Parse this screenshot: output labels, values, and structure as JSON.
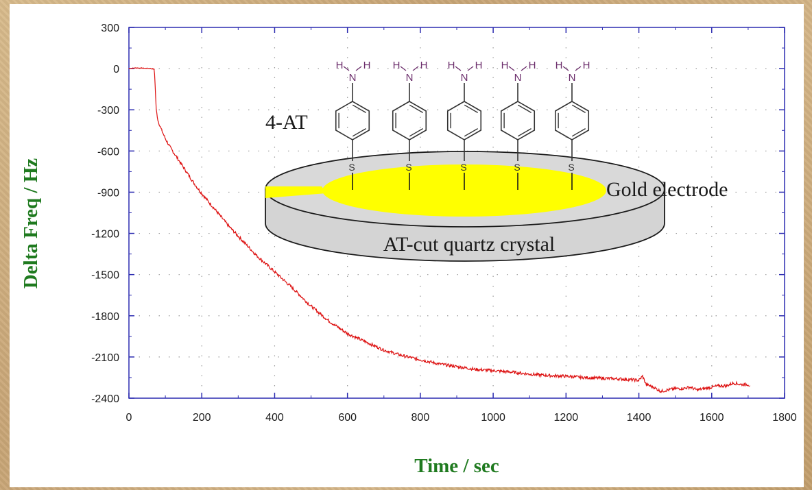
{
  "chart_data": {
    "type": "line",
    "xlabel": "Time / sec",
    "ylabel": "Delta Freq / Hz",
    "xlim": [
      0,
      1800
    ],
    "ylim": [
      -2400,
      300
    ],
    "xticks": [
      0,
      200,
      400,
      600,
      800,
      1000,
      1200,
      1400,
      1600,
      1800
    ],
    "yticks": [
      300,
      0,
      -300,
      -600,
      -900,
      -1200,
      -1500,
      -1800,
      -2100,
      -2400
    ],
    "grid": true,
    "series": [
      {
        "color": "#dd1111",
        "x": [
          0,
          20,
          40,
          60,
          70,
          75,
          80,
          90,
          100,
          110,
          120,
          140,
          160,
          180,
          200,
          225,
          250,
          275,
          300,
          325,
          350,
          375,
          400,
          450,
          500,
          550,
          600,
          650,
          700,
          750,
          800,
          850,
          900,
          950,
          1000,
          1050,
          1100,
          1150,
          1200,
          1250,
          1300,
          1350,
          1400,
          1410,
          1420,
          1440,
          1460,
          1480,
          1500,
          1520,
          1540,
          1560,
          1580,
          1600,
          1620,
          1640,
          1660,
          1680,
          1700,
          1705
        ],
        "y": [
          0,
          5,
          3,
          0,
          -5,
          -300,
          -380,
          -450,
          -510,
          -560,
          -600,
          -680,
          -760,
          -840,
          -910,
          -990,
          -1070,
          -1150,
          -1220,
          -1290,
          -1360,
          -1420,
          -1480,
          -1600,
          -1730,
          -1840,
          -1930,
          -1990,
          -2050,
          -2090,
          -2120,
          -2150,
          -2170,
          -2190,
          -2200,
          -2210,
          -2225,
          -2235,
          -2240,
          -2250,
          -2255,
          -2260,
          -2270,
          -2240,
          -2300,
          -2320,
          -2350,
          -2340,
          -2330,
          -2330,
          -2320,
          -2340,
          -2330,
          -2320,
          -2310,
          -2310,
          -2290,
          -2300,
          -2300,
          -2310
        ]
      }
    ],
    "annotations": {
      "molecule_label": "4-AT",
      "electrode_label": "Gold electrode",
      "crystal_label": "AT-cut quartz crystal",
      "atom_h": "H",
      "atom_n": "N",
      "atom_s": "S"
    }
  }
}
